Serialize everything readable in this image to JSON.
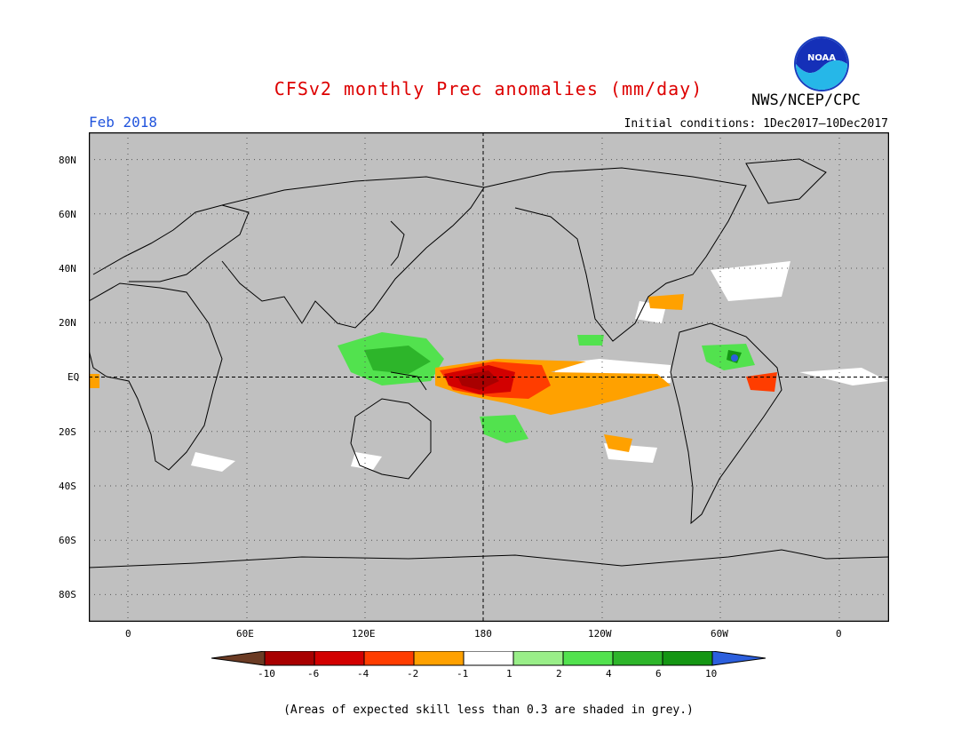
{
  "header": {
    "title": "CFSv2 monthly Prec anomalies (mm/day)",
    "title_color": "#dd0000",
    "agency": "NWS/NCEP/CPC",
    "logo_text": "NOAA",
    "month": "Feb 2018",
    "month_color": "#2255dd",
    "initial_conditions": "Initial conditions: 1Dec2017—10Dec2017"
  },
  "map": {
    "background_color": "#c0c0c0",
    "lat_labels": [
      "80N",
      "60N",
      "40N",
      "20N",
      "EQ",
      "20S",
      "40S",
      "60S",
      "80S"
    ],
    "lon_labels": [
      "0",
      "60E",
      "120E",
      "180",
      "120W",
      "60W",
      "0"
    ],
    "equator_and_dateline_dashed": true,
    "grid": "dotted"
  },
  "colorbar": {
    "colors": [
      "#6b3b24",
      "#a80000",
      "#d20000",
      "#ff3d00",
      "#ffa100",
      "#ffffff",
      "#99ee88",
      "#52e24e",
      "#2db52a",
      "#149613",
      "#2c5fdd"
    ],
    "labels": [
      "-10",
      "-6",
      "-4",
      "-2",
      "-1",
      "1",
      "2",
      "4",
      "6",
      "10"
    ]
  },
  "footnote": "(Areas of expected skill less than 0.3 are shaded in grey.)"
}
